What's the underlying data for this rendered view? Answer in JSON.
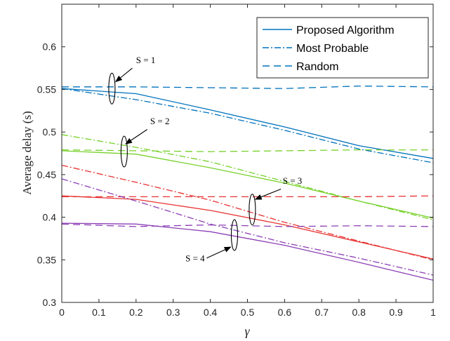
{
  "chart_data": {
    "type": "line",
    "title": "",
    "xlabel": "γ",
    "ylabel": "Average delay (s)",
    "xlim": [
      0,
      1
    ],
    "ylim": [
      0.3,
      0.65
    ],
    "xticks": [
      0,
      0.1,
      0.2,
      0.3,
      0.4,
      0.5,
      0.6,
      0.7,
      0.8,
      0.9,
      1
    ],
    "xtick_labels": [
      "0",
      "0.1",
      "0.2",
      "0.3",
      "0.4",
      "0.5",
      "0.6",
      "0.7",
      "0.8",
      "0.9",
      "1"
    ],
    "yticks": [
      0.3,
      0.35,
      0.4,
      0.45,
      0.5,
      0.55,
      0.6
    ],
    "ytick_labels": [
      "0.3",
      "0.35",
      "0.4",
      "0.45",
      "0.5",
      "0.55",
      "0.6"
    ],
    "grid": false,
    "legend_position": "top-right",
    "legend": [
      {
        "label": "Proposed Algorithm",
        "style": "solid"
      },
      {
        "label": "Most Probable",
        "style": "dashdot"
      },
      {
        "label": "Random",
        "style": "dashed"
      }
    ],
    "x": [
      0,
      0.2,
      0.4,
      0.6,
      0.8,
      1
    ],
    "groups": [
      {
        "label": "S = 1",
        "color": "#0072BD",
        "proposed": [
          0.551,
          0.545,
          0.526,
          0.506,
          0.484,
          0.469
        ],
        "mostProbable": [
          0.551,
          0.538,
          0.522,
          0.502,
          0.48,
          0.464
        ],
        "random": [
          0.553,
          0.553,
          0.552,
          0.551,
          0.554,
          0.553
        ]
      },
      {
        "label": "S = 2",
        "color": "#77D12B",
        "proposed": [
          0.478,
          0.474,
          0.458,
          0.44,
          0.419,
          0.399
        ],
        "mostProbable": [
          0.497,
          0.482,
          0.465,
          0.442,
          0.419,
          0.397
        ],
        "random": [
          0.479,
          0.478,
          0.477,
          0.478,
          0.479,
          0.479
        ]
      },
      {
        "label": "S = 3",
        "color": "#E83232",
        "proposed": [
          0.425,
          0.421,
          0.408,
          0.391,
          0.371,
          0.351
        ],
        "mostProbable": [
          0.461,
          0.441,
          0.42,
          0.394,
          0.372,
          0.35
        ],
        "random": [
          0.424,
          0.424,
          0.424,
          0.424,
          0.424,
          0.425
        ]
      },
      {
        "label": "S = 4",
        "color": "#8C3FB5",
        "proposed": [
          0.393,
          0.392,
          0.383,
          0.367,
          0.347,
          0.326
        ],
        "mostProbable": [
          0.445,
          0.419,
          0.392,
          0.37,
          0.352,
          0.332
        ],
        "random": [
          0.392,
          0.389,
          0.391,
          0.389,
          0.39,
          0.389
        ]
      }
    ]
  }
}
